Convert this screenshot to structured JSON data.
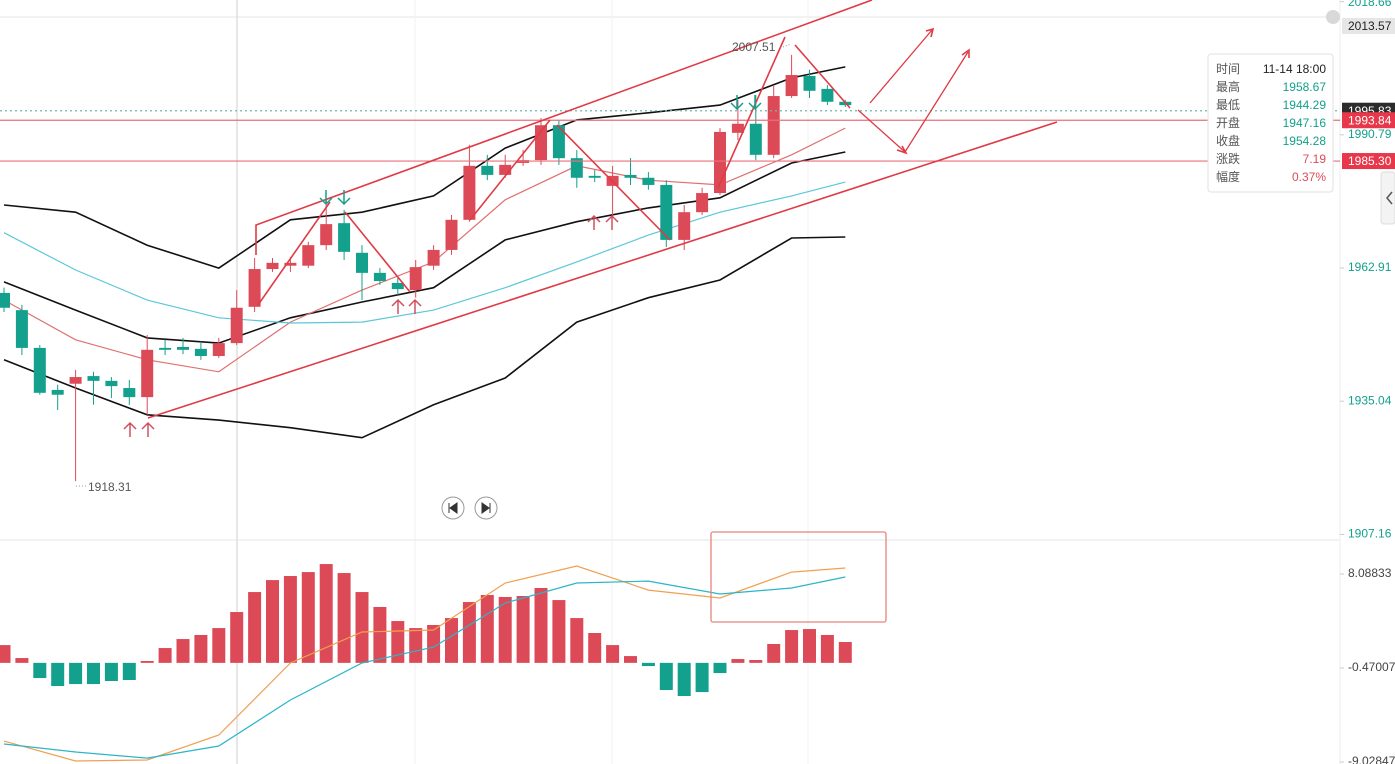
{
  "chart_data": [
    {
      "type": "candlestick",
      "up_color": "#dd4a57",
      "down_color": "#13a08c",
      "ylim": [
        1906,
        2019
      ],
      "yticks": [
        1907.16,
        1935.04,
        1962.91,
        1990.79,
        2018.66
      ],
      "open": [
        1957.7,
        1954.1,
        1946.2,
        1937.4,
        1938.7,
        1940.3,
        1939.3,
        1937.8,
        1935.9,
        1946.2,
        1946.4,
        1946.0,
        1944.5,
        1947.2,
        1954.8,
        1962.7,
        1963.4,
        1963.4,
        1967.7,
        1972.3,
        1966.1,
        1961.9,
        1959.8,
        1958.3,
        1963.4,
        1966.7,
        1973.0,
        1984.3,
        1982.4,
        1984.9,
        1985.5,
        1992.8,
        1985.9,
        1982.2,
        1980.1,
        1982.4,
        1981.8,
        1980.3,
        1968.8,
        1974.6,
        1978.6,
        1991.2,
        1993.1,
        1986.6,
        1998.9,
        2003.1,
        2000.4,
        1997.7
      ],
      "high": [
        1958.8,
        1955.2,
        1946.8,
        1938.5,
        1941.6,
        1941.2,
        1940.1,
        1939.5,
        1948.9,
        1947.9,
        1948.3,
        1947.5,
        1948.3,
        1958.3,
        1965.0,
        1965.0,
        1965.2,
        1968.4,
        1977.2,
        1975.1,
        1967.7,
        1962.9,
        1960.8,
        1964.6,
        1967.7,
        1974.0,
        1988.7,
        1986.6,
        1986.6,
        1987.6,
        1994.3,
        1993.9,
        1987.6,
        1983.4,
        1984.3,
        1985.9,
        1983.0,
        1981.3,
        1976.1,
        1979.7,
        1992.2,
        1998.1,
        1999.1,
        2001.2,
        2007.51,
        2004.4,
        2001.2,
        1998.1
      ],
      "low": [
        1953.7,
        1944.7,
        1936.4,
        1933.2,
        1918.31,
        1934.3,
        1935.7,
        1934.3,
        1932.2,
        1944.7,
        1944.9,
        1943.7,
        1944.1,
        1946.8,
        1953.7,
        1962.1,
        1962.1,
        1962.9,
        1966.7,
        1964.6,
        1956.2,
        1959.4,
        1957.3,
        1956.7,
        1962.5,
        1965.7,
        1972.6,
        1981.3,
        1981.8,
        1984.3,
        1984.5,
        1984.5,
        1979.7,
        1980.9,
        1974.0,
        1980.3,
        1979.3,
        1967.3,
        1966.7,
        1974.0,
        1978.2,
        1989.7,
        1985.5,
        1985.9,
        1998.5,
        1998.5,
        1997.0,
        1996.6
      ],
      "close": [
        1954.6,
        1946.2,
        1936.8,
        1936.4,
        1940.1,
        1939.3,
        1938.2,
        1935.9,
        1945.8,
        1945.8,
        1945.8,
        1944.5,
        1947.2,
        1954.6,
        1962.7,
        1964.0,
        1964.0,
        1967.7,
        1972.1,
        1966.3,
        1961.9,
        1960.2,
        1958.5,
        1963.1,
        1966.7,
        1973.0,
        1984.3,
        1982.4,
        1984.5,
        1985.5,
        1992.8,
        1985.9,
        1981.8,
        1981.8,
        1982.2,
        1981.8,
        1980.3,
        1968.8,
        1974.6,
        1978.6,
        1991.4,
        1993.1,
        1986.6,
        1998.9,
        2003.3,
        2000.0,
        1997.7,
        1997.0
      ],
      "lines": [
        {
          "color": "#111111",
          "x": [
            0,
            4,
            8,
            12,
            16,
            20,
            24,
            28,
            32,
            36,
            40,
            44,
            47
          ],
          "values": [
            1976.1,
            1974.6,
            1967.7,
            1962.9,
            1973.0,
            1974.6,
            1978.0,
            1988.0,
            1993.9,
            1995.4,
            1997.0,
            2002.7,
            2005.0
          ]
        },
        {
          "color": "#111111",
          "x": [
            0,
            4,
            8,
            12,
            16,
            20,
            24,
            28,
            32,
            36,
            40,
            44,
            47
          ],
          "values": [
            1960.0,
            1954.1,
            1948.3,
            1947.2,
            1952.5,
            1955.8,
            1958.8,
            1968.8,
            1972.6,
            1975.5,
            1977.6,
            1984.9,
            1987.2
          ]
        },
        {
          "color": "#111111",
          "x": [
            0,
            4,
            8,
            12,
            16,
            20,
            24,
            28,
            32,
            36,
            40,
            44,
            47
          ],
          "values": [
            1943.7,
            1937.8,
            1932.2,
            1931.1,
            1929.5,
            1927.4,
            1934.3,
            1939.9,
            1951.6,
            1956.7,
            1960.4,
            1969.2,
            1969.4
          ]
        },
        {
          "color": "#e07070",
          "x": [
            0,
            4,
            8,
            12,
            16,
            20,
            24,
            28,
            32,
            36,
            40,
            44,
            47
          ],
          "values": [
            1956.2,
            1947.9,
            1943.7,
            1941.2,
            1951.6,
            1958.3,
            1964.2,
            1977.2,
            1984.3,
            1981.3,
            1980.3,
            1986.6,
            1992.2
          ]
        },
        {
          "color": "#5bc8d8",
          "x": [
            0,
            4,
            8,
            12,
            16,
            20,
            24,
            28,
            32,
            36,
            40,
            44,
            47
          ],
          "values": [
            1970.3,
            1962.5,
            1956.2,
            1952.5,
            1951.4,
            1951.6,
            1954.1,
            1958.8,
            1964.2,
            1969.8,
            1974.6,
            1978.0,
            1980.9
          ]
        }
      ],
      "price_tags": [
        {
          "value": 2013.57,
          "label": "2013.57",
          "bg": "#e6e6e6",
          "fg": "#222222"
        },
        {
          "value": 1995.83,
          "label": "1995.83",
          "bg": "#2b2b2b",
          "fg": "#ffffff",
          "line": "dotted",
          "line_color": "#6fb8b0"
        },
        {
          "value": 1993.84,
          "label": "1993.84",
          "bg": "#e8364a",
          "fg": "#ffffff",
          "line": "solid",
          "line_color": "#e8707a"
        },
        {
          "value": 1985.3,
          "label": "1985.30",
          "bg": "#e8364a",
          "fg": "#ffffff",
          "line": "solid",
          "line_color": "#e8707a"
        }
      ]
    },
    {
      "type": "macd",
      "up_color": "#dd4a57",
      "down_color": "#13a08c",
      "ylim": [
        -9.21,
        11.19
      ],
      "yticks": [
        8.08833,
        -0.47007,
        -9.02847
      ],
      "values": [
        1.62,
        0.44,
        -1.38,
        -2.11,
        -1.93,
        -1.93,
        -1.65,
        -1.56,
        0.17,
        1.35,
        2.17,
        2.54,
        3.17,
        4.63,
        6.45,
        7.54,
        7.91,
        8.27,
        9.0,
        8.18,
        6.45,
        5.09,
        3.81,
        3.17,
        3.45,
        4.08,
        5.54,
        6.18,
        6.0,
        6.09,
        6.82,
        5.72,
        4.08,
        2.72,
        1.62,
        0.62,
        -0.29,
        -2.47,
        -3.02,
        -2.66,
        -0.93,
        0.35,
        0.26,
        1.72,
        2.99,
        3.08,
        2.54,
        1.9
      ],
      "lines": [
        {
          "color": "#f0a050",
          "x": [
            0,
            4,
            8,
            12,
            16,
            20,
            24,
            28,
            32,
            36,
            40,
            44,
            47
          ],
          "values": [
            -7.12,
            -8.94,
            -8.85,
            -6.57,
            -0.01,
            2.81,
            2.99,
            7.27,
            8.82,
            6.63,
            5.91,
            8.27,
            8.64
          ]
        },
        {
          "color": "#2bb5c8",
          "x": [
            0,
            4,
            8,
            12,
            16,
            20,
            24,
            28,
            32,
            36,
            40,
            44,
            47
          ],
          "values": [
            -7.39,
            -8.12,
            -8.67,
            -7.57,
            -3.38,
            -0.01,
            1.44,
            5.45,
            7.27,
            7.45,
            6.27,
            6.82,
            7.82
          ]
        }
      ]
    }
  ],
  "tooltip": [
    [
      "时间",
      "11-14 18:00"
    ],
    [
      "最高",
      "1958.67"
    ],
    [
      "最低",
      "1944.29"
    ],
    [
      "开盘",
      "1947.16"
    ],
    [
      "收盘",
      "1954.28"
    ],
    [
      "涨跌",
      "7.19"
    ],
    [
      "幅度",
      "0.37%"
    ]
  ]
}
